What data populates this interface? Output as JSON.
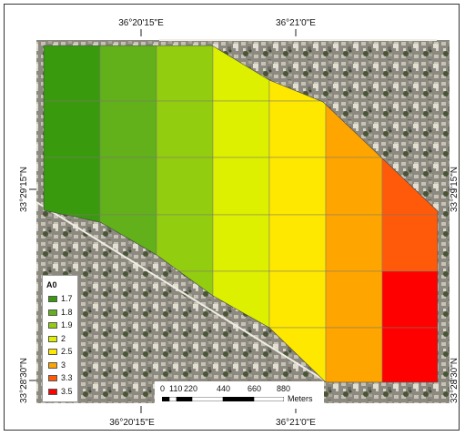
{
  "map": {
    "top_lon_labels": [
      "36°20'15\"E",
      "36°21'0\"E"
    ],
    "bottom_lon_labels": [
      "36°20'15\"E",
      "36°21'0\"E"
    ],
    "left_lat_labels": [
      "33°29'15\"N",
      "33°28'30\"N"
    ],
    "right_lat_labels": [
      "33°29'15\"N",
      "33°28'30\"N"
    ]
  },
  "legend": {
    "title": "A0",
    "items": [
      {
        "label": "1.7",
        "color": "#3a9a0d"
      },
      {
        "label": "1.8",
        "color": "#62b01a"
      },
      {
        "label": "1.9",
        "color": "#93cd10"
      },
      {
        "label": "2",
        "color": "#dcf000"
      },
      {
        "label": "2.5",
        "color": "#ffe800"
      },
      {
        "label": "3",
        "color": "#ffa500"
      },
      {
        "label": "3.3",
        "color": "#ff5a0a"
      },
      {
        "label": "3.5",
        "color": "#ff0000"
      }
    ]
  },
  "grid": {
    "columns": [
      {
        "value": "1.7",
        "color": "#3a9a0d"
      },
      {
        "value": "1.8",
        "color": "#62b01a"
      },
      {
        "value": "1.9",
        "color": "#93cd10"
      },
      {
        "value": "2",
        "color": "#dcf000"
      },
      {
        "value": "2.5",
        "color": "#ffe800"
      },
      {
        "value": "3",
        "color": "#ffa500"
      },
      {
        "value": "3.3",
        "color": "#ff5a0a"
      },
      {
        "value": "3.5",
        "color": "#ff0000"
      }
    ],
    "last_column_top": "3.3",
    "last_column_bottom": "3.5"
  },
  "scalebar": {
    "labels": [
      "0",
      "110",
      "220",
      "440",
      "660",
      "880"
    ],
    "unit": "Meters"
  }
}
